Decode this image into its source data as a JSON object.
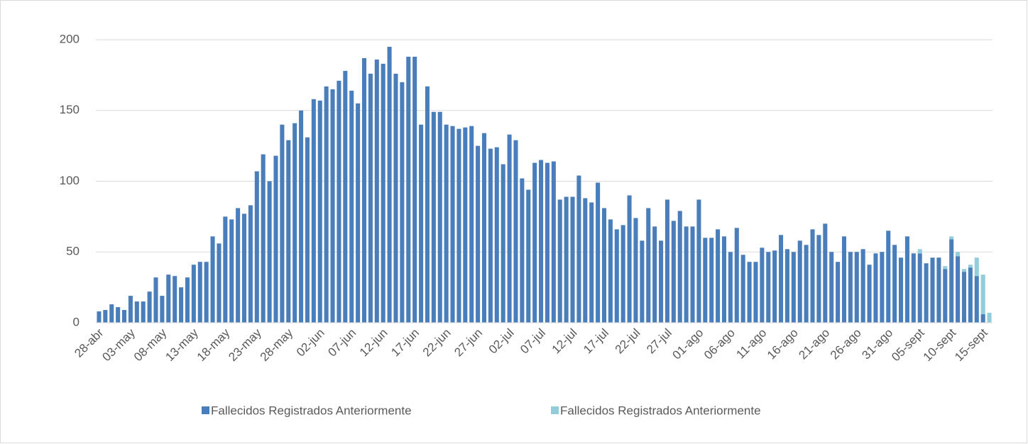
{
  "chart_data": {
    "type": "stacked-bar",
    "categories": [
      "28-abr",
      null,
      null,
      null,
      null,
      "03-may",
      null,
      null,
      null,
      null,
      "08-may",
      null,
      null,
      null,
      null,
      "13-may",
      null,
      null,
      null,
      null,
      "18-may",
      null,
      null,
      null,
      null,
      "23-may",
      null,
      null,
      null,
      null,
      "28-may",
      null,
      null,
      null,
      null,
      "02-jun",
      null,
      null,
      null,
      null,
      "07-jun",
      null,
      null,
      null,
      null,
      "12-jun",
      null,
      null,
      null,
      null,
      "17-jun",
      null,
      null,
      null,
      null,
      "22-jun",
      null,
      null,
      null,
      null,
      "27-jun",
      null,
      null,
      null,
      null,
      "02-jul",
      null,
      null,
      null,
      null,
      "07-jul",
      null,
      null,
      null,
      null,
      "12-jul",
      null,
      null,
      null,
      null,
      "17-jul",
      null,
      null,
      null,
      null,
      "22-jul",
      null,
      null,
      null,
      null,
      "27-jul",
      null,
      null,
      null,
      null,
      "01-ago",
      null,
      null,
      null,
      null,
      "06-ago",
      null,
      null,
      null,
      null,
      "11-ago",
      null,
      null,
      null,
      null,
      "16-ago",
      null,
      null,
      null,
      null,
      "21-ago",
      null,
      null,
      null,
      null,
      "26-ago",
      null,
      null,
      null,
      null,
      "31-ago",
      null,
      null,
      null,
      null,
      "05-sept",
      null,
      null,
      null,
      null,
      "10-sept",
      null,
      null,
      null,
      null,
      "15-sept",
      null
    ],
    "series": [
      {
        "name": "Fallecidos Registrados Anteriormente",
        "color": "#4a7ebb",
        "values": [
          8,
          9,
          13,
          11,
          9,
          19,
          15,
          15,
          22,
          32,
          19,
          34,
          33,
          25,
          32,
          41,
          43,
          43,
          61,
          56,
          75,
          73,
          81,
          77,
          83,
          107,
          119,
          100,
          118,
          140,
          129,
          141,
          150,
          131,
          158,
          157,
          167,
          165,
          171,
          178,
          164,
          155,
          187,
          176,
          186,
          183,
          195,
          176,
          170,
          188,
          188,
          140,
          167,
          149,
          149,
          140,
          139,
          137,
          138,
          139,
          125,
          134,
          123,
          124,
          112,
          133,
          129,
          102,
          94,
          113,
          115,
          113,
          114,
          87,
          89,
          89,
          104,
          88,
          85,
          99,
          81,
          73,
          66,
          69,
          90,
          74,
          58,
          81,
          68,
          58,
          87,
          72,
          79,
          68,
          68,
          87,
          60,
          60,
          66,
          61,
          50,
          67,
          48,
          43,
          43,
          53,
          50,
          51,
          62,
          52,
          50,
          58,
          55,
          66,
          62,
          70,
          50,
          43,
          61,
          50,
          50,
          52,
          41,
          49,
          50,
          65,
          55,
          46,
          61,
          49,
          49,
          42,
          46,
          46,
          38,
          59,
          47,
          36,
          39,
          33,
          6,
          0
        ]
      },
      {
        "name": "Fallecidos Registrados Anteriormente",
        "color": "#92cddc",
        "values": [
          0,
          0,
          0,
          0,
          0,
          0,
          0,
          0,
          0,
          0,
          0,
          0,
          0,
          0,
          0,
          0,
          0,
          0,
          0,
          0,
          0,
          0,
          0,
          0,
          0,
          0,
          0,
          0,
          0,
          0,
          0,
          0,
          0,
          0,
          0,
          0,
          0,
          0,
          0,
          0,
          0,
          0,
          0,
          0,
          0,
          0,
          0,
          0,
          0,
          0,
          0,
          0,
          0,
          0,
          0,
          0,
          0,
          0,
          0,
          0,
          0,
          0,
          0,
          0,
          0,
          0,
          0,
          0,
          0,
          0,
          0,
          0,
          0,
          0,
          0,
          0,
          0,
          0,
          0,
          0,
          0,
          0,
          0,
          0,
          0,
          0,
          0,
          0,
          0,
          0,
          0,
          0,
          0,
          0,
          0,
          0,
          0,
          0,
          0,
          0,
          0,
          0,
          0,
          0,
          0,
          0,
          0,
          0,
          0,
          0,
          0,
          0,
          0,
          0,
          0,
          0,
          0,
          0,
          0,
          0,
          0,
          0,
          0,
          0,
          0,
          0,
          0,
          0,
          0,
          0,
          3,
          0,
          0,
          0,
          2,
          2,
          3,
          2,
          2,
          13,
          28,
          7
        ]
      }
    ],
    "ylim": [
      0,
      200
    ],
    "yticks": [
      0,
      50,
      100,
      150,
      200
    ],
    "grid": true,
    "legend": "bottom"
  }
}
